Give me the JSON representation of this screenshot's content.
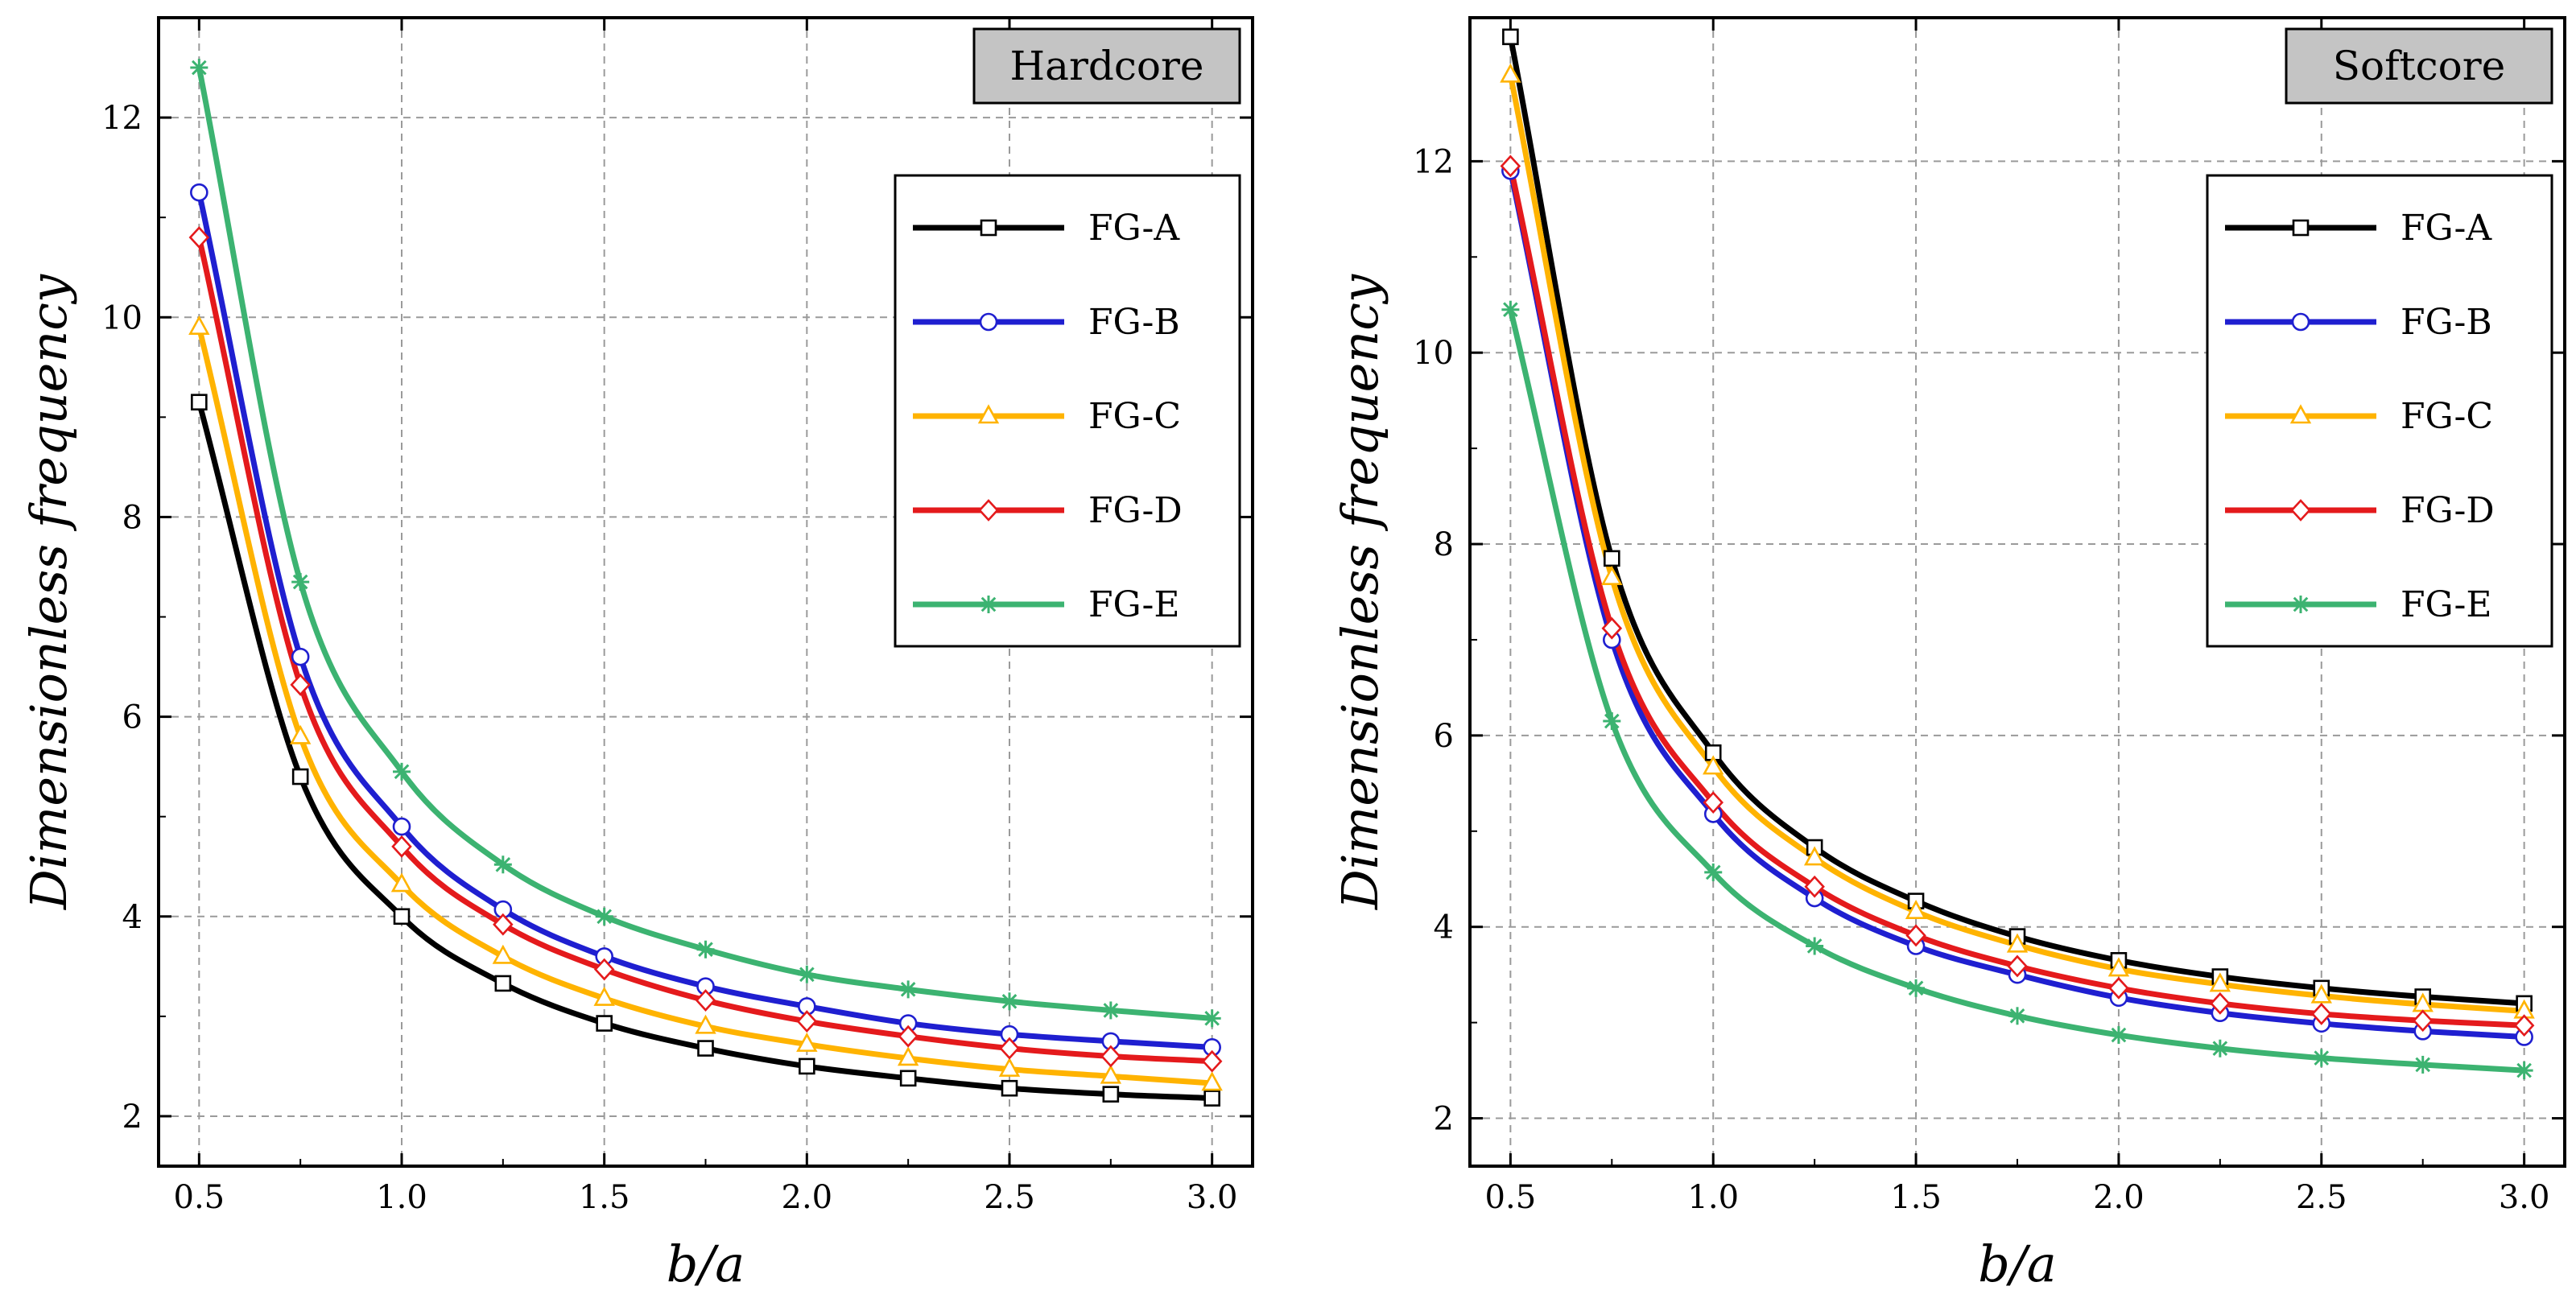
{
  "chart_data": [
    {
      "type": "line",
      "panel_label": "Hardcore",
      "xlabel": "b/a",
      "ylabel": "Dimensionless frequency",
      "xlim": [
        0.4,
        3.1
      ],
      "ylim": [
        1.5,
        13.0
      ],
      "xticks": [
        0.5,
        1.0,
        1.5,
        2.0,
        2.5,
        3.0
      ],
      "xtick_labels": [
        "0.5",
        "1.0",
        "1.5",
        "2.0",
        "2.5",
        "3.0"
      ],
      "yticks": [
        2,
        4,
        6,
        8,
        10,
        12
      ],
      "ytick_labels": [
        "2",
        "4",
        "6",
        "8",
        "10",
        "12"
      ],
      "grid": true,
      "legend_position": "upper-right",
      "x": [
        0.5,
        0.75,
        1.0,
        1.25,
        1.5,
        1.75,
        2.0,
        2.25,
        2.5,
        2.75,
        3.0
      ],
      "series": [
        {
          "name": "FG-A",
          "color": "#000000",
          "marker": "square",
          "values": [
            9.15,
            5.4,
            4.0,
            3.33,
            2.93,
            2.68,
            2.5,
            2.38,
            2.28,
            2.22,
            2.18
          ]
        },
        {
          "name": "FG-B",
          "color": "#1f1fd0",
          "marker": "circle",
          "values": [
            11.25,
            6.6,
            4.9,
            4.07,
            3.6,
            3.3,
            3.1,
            2.93,
            2.82,
            2.75,
            2.69
          ]
        },
        {
          "name": "FG-C",
          "color": "#ffb300",
          "marker": "triangle",
          "values": [
            9.9,
            5.8,
            4.32,
            3.6,
            3.18,
            2.9,
            2.72,
            2.58,
            2.47,
            2.4,
            2.33
          ]
        },
        {
          "name": "FG-D",
          "color": "#e41a1c",
          "marker": "diamond",
          "values": [
            10.8,
            6.32,
            4.7,
            3.92,
            3.47,
            3.16,
            2.95,
            2.8,
            2.68,
            2.6,
            2.55
          ]
        },
        {
          "name": "FG-E",
          "color": "#3cb371",
          "marker": "star",
          "values": [
            12.5,
            7.35,
            5.45,
            4.52,
            4.0,
            3.67,
            3.42,
            3.27,
            3.15,
            3.06,
            2.98
          ]
        }
      ]
    },
    {
      "type": "line",
      "panel_label": "Softcore",
      "xlabel": "b/a",
      "ylabel": "Dimensionless frequency",
      "xlim": [
        0.4,
        3.1
      ],
      "ylim": [
        1.5,
        13.5
      ],
      "xticks": [
        0.5,
        1.0,
        1.5,
        2.0,
        2.5,
        3.0
      ],
      "xtick_labels": [
        "0.5",
        "1.0",
        "1.5",
        "2.0",
        "2.5",
        "3.0"
      ],
      "yticks": [
        2,
        4,
        6,
        8,
        10,
        12
      ],
      "ytick_labels": [
        "2",
        "4",
        "6",
        "8",
        "10",
        "12"
      ],
      "grid": true,
      "legend_position": "upper-right",
      "x": [
        0.5,
        0.75,
        1.0,
        1.25,
        1.5,
        1.75,
        2.0,
        2.25,
        2.5,
        2.75,
        3.0
      ],
      "series": [
        {
          "name": "FG-A",
          "color": "#000000",
          "marker": "square",
          "values": [
            13.3,
            7.85,
            5.82,
            4.83,
            4.27,
            3.9,
            3.65,
            3.48,
            3.36,
            3.27,
            3.2
          ]
        },
        {
          "name": "FG-B",
          "color": "#1f1fd0",
          "marker": "circle",
          "values": [
            11.9,
            7.0,
            5.18,
            4.3,
            3.8,
            3.5,
            3.26,
            3.1,
            2.99,
            2.91,
            2.85
          ]
        },
        {
          "name": "FG-C",
          "color": "#ffb300",
          "marker": "triangle",
          "values": [
            12.9,
            7.65,
            5.67,
            4.72,
            4.16,
            3.81,
            3.56,
            3.4,
            3.28,
            3.19,
            3.12
          ]
        },
        {
          "name": "FG-D",
          "color": "#e41a1c",
          "marker": "diamond",
          "values": [
            11.95,
            7.12,
            5.3,
            4.42,
            3.91,
            3.59,
            3.36,
            3.2,
            3.09,
            3.02,
            2.97
          ]
        },
        {
          "name": "FG-E",
          "color": "#3cb371",
          "marker": "star",
          "values": [
            10.45,
            6.15,
            4.57,
            3.8,
            3.36,
            3.07,
            2.87,
            2.73,
            2.63,
            2.56,
            2.5
          ]
        }
      ]
    }
  ]
}
